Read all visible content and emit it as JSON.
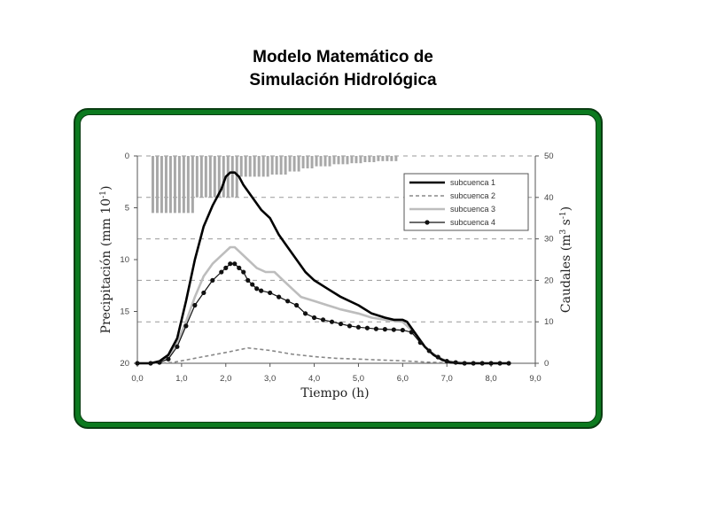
{
  "page": {
    "title_line1": "Modelo Matemático de",
    "title_line2": "Simulación Hidrológica"
  },
  "colors": {
    "frame": "#0c7a1f",
    "bars": "#a8a8a8",
    "s1": "#000000",
    "s2": "#888888",
    "s3": "#bdbdbd",
    "s4": "#111111"
  },
  "chart_data": {
    "type": "line",
    "xlabel": "Tiempo  (h)",
    "ylabel_left": "Precipitación  (mm 10",
    "ylabel_left_sup": "-1",
    "ylabel_left_end": ")",
    "ylabel_right": "Caudales  (m",
    "ylabel_right_sup1": "3",
    "ylabel_right_mid": " s",
    "ylabel_right_sup2": "-1",
    "ylabel_right_end": ")",
    "xlim": [
      0,
      9
    ],
    "ylim_left_inverted": [
      0,
      20
    ],
    "ylim_right": [
      0,
      50
    ],
    "x_ticks": [
      "0,0",
      "1,0",
      "2,0",
      "3,0",
      "4,0",
      "5,0",
      "6,0",
      "7,0",
      "8,0",
      "9,0"
    ],
    "y_left_ticks": [
      "0",
      "5",
      "10",
      "15",
      "20"
    ],
    "y_right_ticks": [
      "0",
      "10",
      "20",
      "30",
      "40",
      "50"
    ],
    "legend_position": "top-right",
    "precipitation": {
      "t": [
        0.3,
        0.4,
        0.5,
        0.6,
        0.7,
        0.8,
        0.9,
        1.0,
        1.1,
        1.2,
        1.3,
        1.4,
        1.5,
        1.6,
        1.7,
        1.8,
        1.9,
        2.0,
        2.1,
        2.2,
        2.3,
        2.4,
        2.5,
        2.6,
        2.7,
        2.8,
        2.9,
        3.0,
        3.1,
        3.2,
        3.3,
        3.4,
        3.5,
        3.6,
        3.7,
        3.8,
        3.9,
        4.0,
        4.1,
        4.2,
        4.3,
        4.4,
        4.5,
        4.6,
        4.7,
        4.8,
        4.9,
        5.0,
        5.1,
        5.2,
        5.3,
        5.4,
        5.5,
        5.6,
        5.7,
        5.8
      ],
      "values": [
        5.5,
        5.5,
        5.5,
        5.5,
        5.5,
        5.5,
        5.5,
        5.5,
        5.5,
        5.5,
        4,
        4,
        4,
        4,
        4,
        4,
        4,
        4,
        4,
        4,
        2,
        2,
        2,
        2,
        2,
        2,
        2,
        1.8,
        1.8,
        1.8,
        1.8,
        1.5,
        1.5,
        1.5,
        1.2,
        1.2,
        1.2,
        1.0,
        1.0,
        1.0,
        1.0,
        0.8,
        0.8,
        0.8,
        0.8,
        0.7,
        0.7,
        0.7,
        0.6,
        0.6,
        0.6,
        0.5,
        0.5,
        0.5,
        0.5,
        0.5
      ]
    },
    "series": [
      {
        "name": "subcuenca 1",
        "x": [
          0,
          0.3,
          0.5,
          0.7,
          0.9,
          1.1,
          1.3,
          1.5,
          1.7,
          1.9,
          2.0,
          2.1,
          2.2,
          2.3,
          2.4,
          2.6,
          2.8,
          3.0,
          3.2,
          3.4,
          3.6,
          3.8,
          4.0,
          4.3,
          4.6,
          5.0,
          5.3,
          5.6,
          5.8,
          6.0,
          6.1,
          6.3,
          6.5,
          6.7,
          6.9,
          7.1,
          7.3,
          7.5,
          8.0,
          8.4
        ],
        "values": [
          0,
          0,
          0.5,
          2,
          6,
          15,
          25,
          33,
          38,
          42,
          45,
          46,
          46,
          45,
          43,
          40,
          37,
          35,
          31,
          28,
          25,
          22,
          20,
          18,
          16,
          14,
          12,
          11,
          10.5,
          10.5,
          10,
          7,
          4,
          2,
          0.8,
          0.2,
          0,
          0,
          0,
          0
        ]
      },
      {
        "name": "subcuenca 2",
        "x": [
          0,
          0.5,
          0.8,
          1.0,
          1.5,
          2.0,
          2.5,
          3.0,
          3.5,
          4.0,
          4.5,
          5.0,
          5.5,
          6.0,
          6.5,
          7.0,
          7.5,
          8.4
        ],
        "values": [
          0,
          0,
          0.2,
          0.6,
          1.6,
          2.6,
          3.7,
          3.1,
          2.2,
          1.6,
          1.2,
          1.0,
          0.8,
          0.6,
          0.3,
          0.1,
          0,
          0
        ]
      },
      {
        "name": "subcuenca 3",
        "x": [
          0,
          0.3,
          0.5,
          0.7,
          0.9,
          1.1,
          1.3,
          1.5,
          1.7,
          1.9,
          2.1,
          2.2,
          2.3,
          2.5,
          2.7,
          2.9,
          3.1,
          3.3,
          3.5,
          3.7,
          4.0,
          4.3,
          4.6,
          5.0,
          5.3,
          5.6,
          6.0,
          6.2,
          6.4,
          6.6,
          6.8,
          7.0,
          7.5,
          8.4
        ],
        "values": [
          0,
          0,
          0.3,
          1.5,
          5,
          10,
          16,
          21,
          24,
          26,
          28,
          28,
          27,
          25,
          23,
          22,
          22,
          20,
          18,
          16,
          15,
          14,
          13,
          12,
          11,
          10.5,
          10,
          8,
          5,
          3,
          1.5,
          0.5,
          0,
          0
        ]
      },
      {
        "name": "subcuenca 4",
        "x": [
          0,
          0.3,
          0.5,
          0.7,
          0.9,
          1.1,
          1.3,
          1.5,
          1.7,
          1.9,
          2.0,
          2.1,
          2.2,
          2.3,
          2.4,
          2.5,
          2.6,
          2.7,
          2.8,
          3.0,
          3.2,
          3.4,
          3.6,
          3.8,
          4.0,
          4.2,
          4.4,
          4.6,
          4.8,
          5.0,
          5.2,
          5.4,
          5.6,
          5.8,
          6.0,
          6.2,
          6.4,
          6.6,
          6.8,
          7.0,
          7.2,
          7.4,
          7.6,
          7.8,
          8.0,
          8.2,
          8.4
        ],
        "values": [
          0,
          0,
          0.2,
          1,
          4,
          9,
          14,
          17,
          20,
          22,
          23,
          24,
          24,
          23,
          22,
          20,
          19,
          18,
          17.5,
          17,
          16,
          15,
          14,
          12,
          11,
          10.5,
          10,
          9.5,
          9,
          8.7,
          8.5,
          8.3,
          8.2,
          8.1,
          8.0,
          7.5,
          5,
          3,
          1.5,
          0.5,
          0.2,
          0,
          0,
          0,
          0,
          0,
          0
        ]
      }
    ]
  }
}
